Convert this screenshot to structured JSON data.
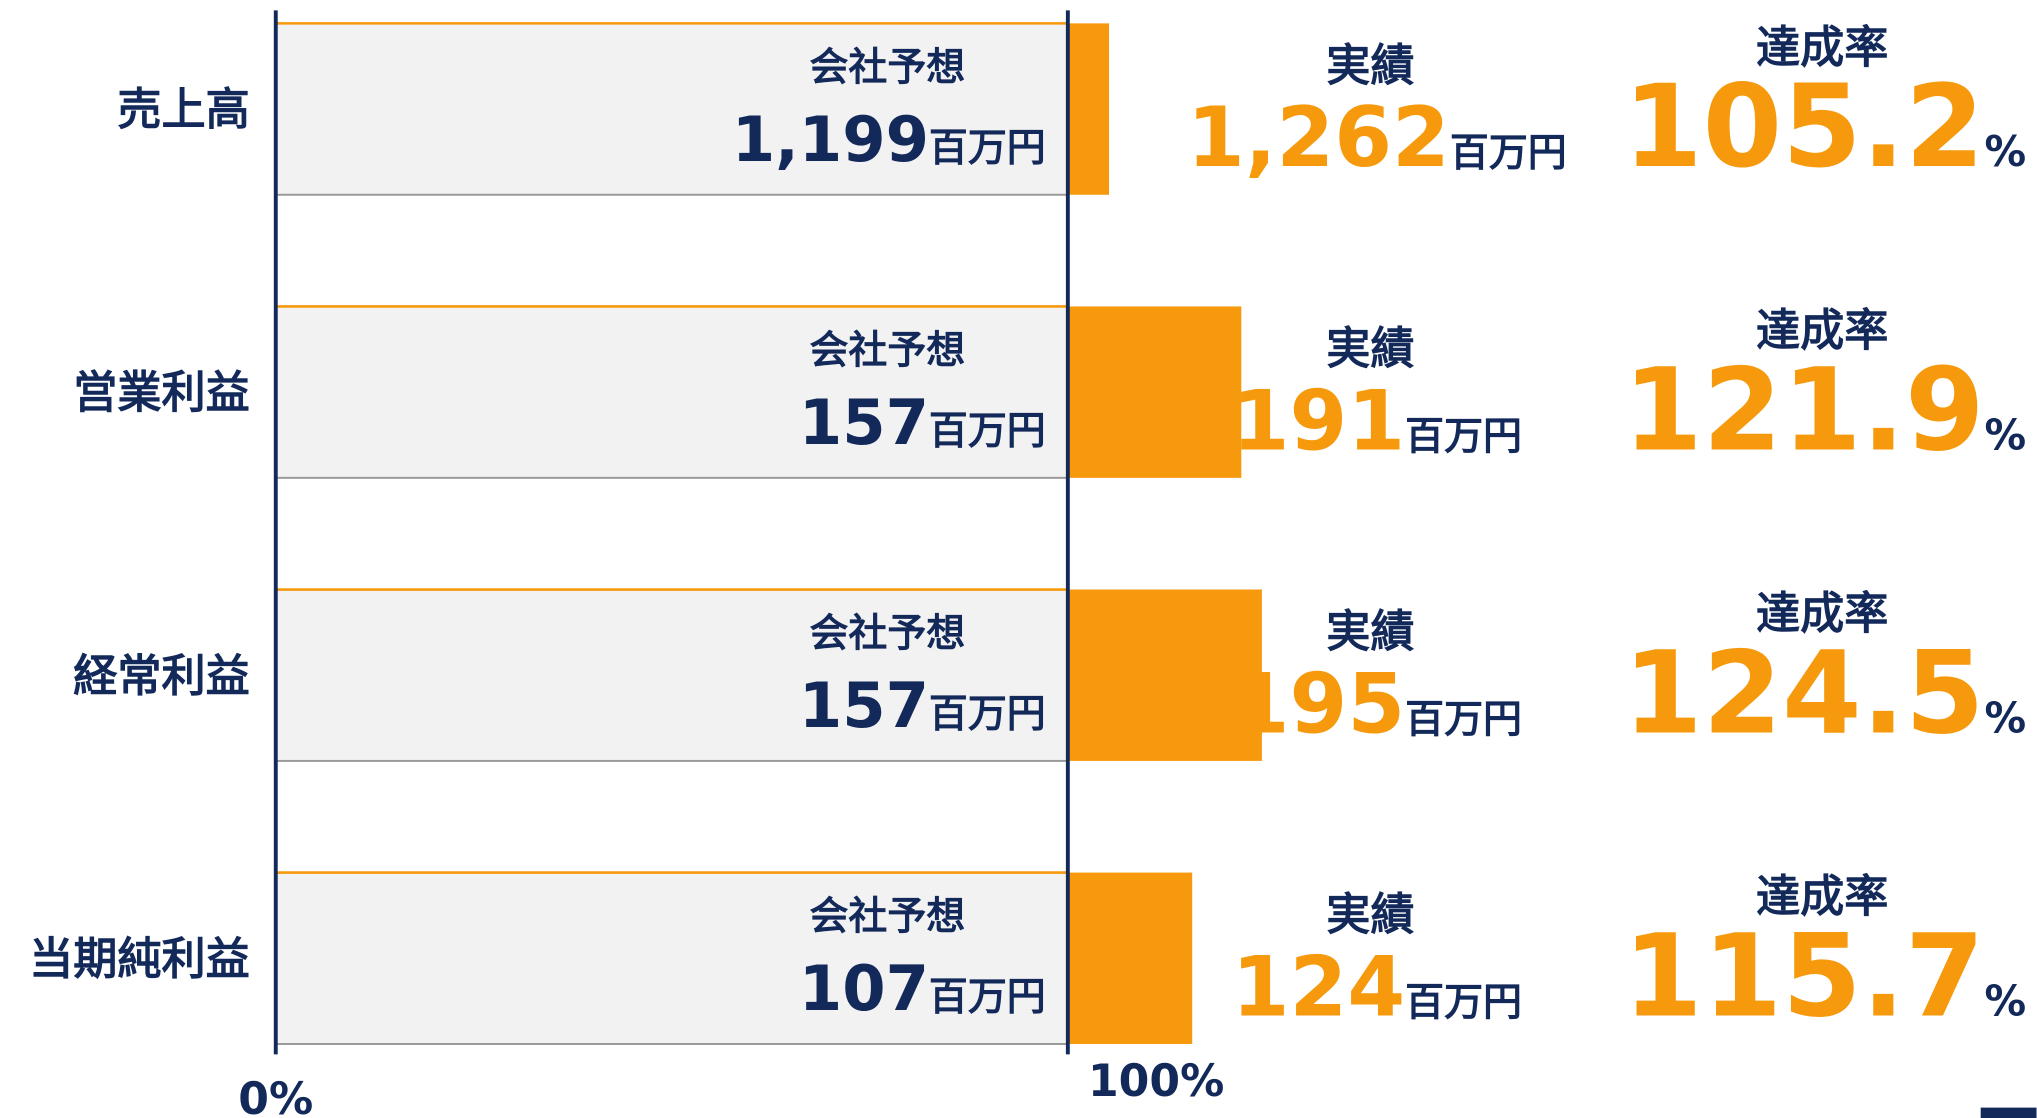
{
  "chart_data": {
    "type": "bar",
    "categories": [
      "売上高",
      "営業利益",
      "経常利益",
      "当期純利益"
    ],
    "series": [
      {
        "name": "会社予想",
        "color": "#f2f2f2",
        "values": [
          1199,
          157,
          157,
          107
        ],
        "value_labels": [
          "1,199",
          "157",
          "157",
          "107"
        ]
      },
      {
        "name": "実績",
        "color": "#f7990c",
        "values": [
          1262,
          191,
          195,
          124
        ],
        "value_labels": [
          "1,262",
          "191",
          "195",
          "124"
        ]
      }
    ],
    "rate": {
      "name": "達成率",
      "values": [
        105.2,
        121.9,
        124.5,
        115.7
      ],
      "unit": "%"
    },
    "unit": "百万円",
    "xlim": [
      0,
      100
    ],
    "xticks": [
      {
        "value": 0,
        "label": "0%"
      },
      {
        "value": 100,
        "label": "100%"
      }
    ],
    "axis_color": "#12295a"
  }
}
